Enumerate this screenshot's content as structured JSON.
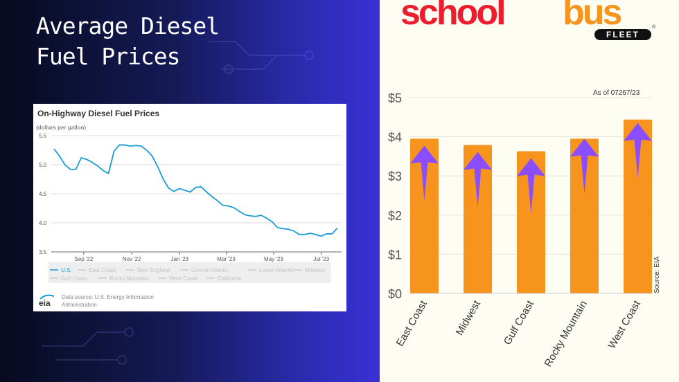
{
  "left": {
    "title_line1": "Average Diesel",
    "title_line2": "Fuel Prices"
  },
  "logo": {
    "school": "school",
    "bus": "bus",
    "fleet": "FLEET",
    "reg": "®",
    "red": "#ee1d2d",
    "orange": "#f7941d"
  },
  "chart_data": [
    {
      "type": "line",
      "title": "On-Highway Diesel Fuel Prices",
      "ylabel": "(dollars per gallon)",
      "ylim": [
        3.5,
        5.5
      ],
      "yticks": [
        "5.5",
        "5.0",
        "4.5",
        "4.0",
        "3.5"
      ],
      "x_unit": "weeks since 2022-08-01",
      "xticks": [
        {
          "label": "Sep '22",
          "x": 5.45
        },
        {
          "label": "Nov '22",
          "x": 14.26
        },
        {
          "label": "Jan '23",
          "x": 23.06
        },
        {
          "label": "Mar '23",
          "x": 31.6
        },
        {
          "label": "May '23",
          "x": 40.3
        },
        {
          "label": "Jul '23",
          "x": 49.06
        }
      ],
      "series": [
        {
          "name": "U.S.",
          "color": "#1a9bd7",
          "values": [
            5.27,
            5.15,
            5.0,
            4.92,
            4.92,
            5.12,
            5.09,
            5.04,
            4.98,
            4.9,
            4.85,
            5.23,
            5.34,
            5.34,
            5.32,
            5.33,
            5.32,
            5.25,
            5.15,
            4.97,
            4.76,
            4.6,
            4.54,
            4.59,
            4.56,
            4.53,
            4.61,
            4.62,
            4.53,
            4.45,
            4.38,
            4.3,
            4.29,
            4.26,
            4.2,
            4.14,
            4.12,
            4.11,
            4.13,
            4.08,
            4.02,
            3.92,
            3.9,
            3.89,
            3.86,
            3.8,
            3.8,
            3.82,
            3.8,
            3.77,
            3.81,
            3.81,
            3.91
          ]
        }
      ],
      "legend": [
        "U.S.",
        "East Coast",
        "New England",
        "Central Atlantic",
        "Lower Atlantic",
        "Midwest",
        "Gulf Coast",
        "Rocky Mountain",
        "West Coast",
        "California"
      ],
      "source_line1": "Data source: U.S. Energy Information",
      "source_line2": "Administration",
      "source_logo": "eia"
    },
    {
      "type": "bar",
      "categories": [
        "East Coast",
        "Midwest",
        "Gulf Coast",
        "Rocky Mountain",
        "West Coast"
      ],
      "values": [
        3.95,
        3.79,
        3.63,
        3.95,
        4.44
      ],
      "ylim": [
        0,
        5
      ],
      "yticks": [
        "$0",
        "$1",
        "$2",
        "$3",
        "$4",
        "$5"
      ],
      "annotation": "As of 07267/23",
      "source": "Source: EIA",
      "bar_color": "#f7941d",
      "arrow_color": "#8a4dff"
    }
  ]
}
